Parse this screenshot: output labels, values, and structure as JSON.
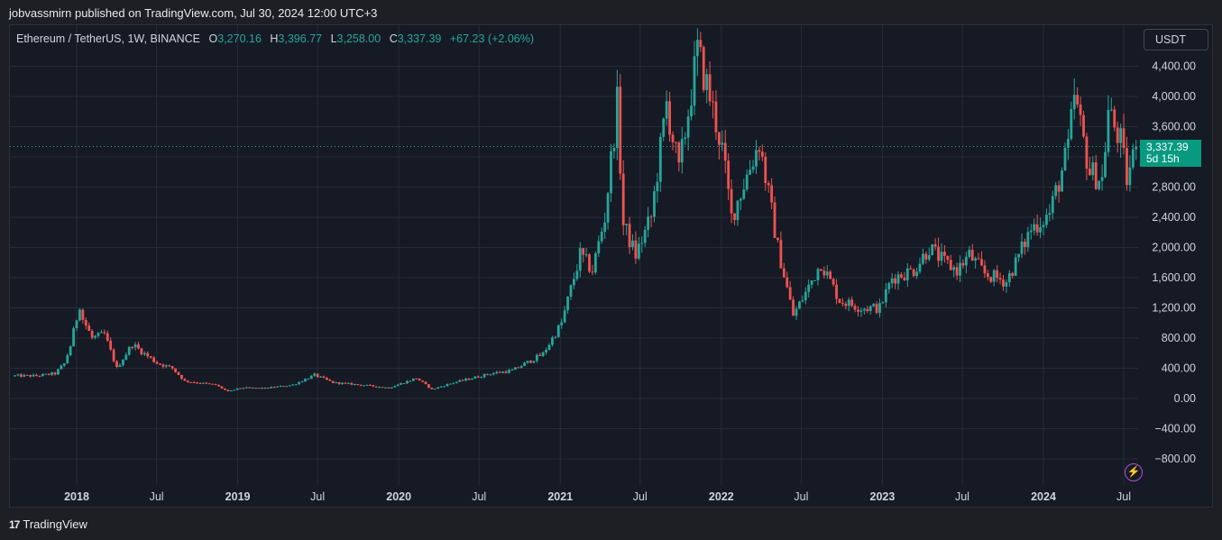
{
  "header": {
    "published": "jobvassmirn published on TradingView.com, Jul 30, 2024 12:00 UTC+3"
  },
  "legend": {
    "symbol": "Ethereum / TetherUS, 1W, BINANCE",
    "o_label": "O",
    "o_value": "3,270.16",
    "h_label": "H",
    "h_value": "3,396.77",
    "l_label": "L",
    "l_value": "3,258.00",
    "c_label": "C",
    "c_value": "3,337.39",
    "change": "+67.23 (+2.06%)"
  },
  "currency_button": "USDT",
  "price_tag": {
    "price": "3,337.39",
    "countdown": "5d 15h"
  },
  "footer": {
    "brand": "TradingView",
    "logo": "17"
  },
  "colors": {
    "up": "#26a69a",
    "down": "#ef5350",
    "background": "#161a25",
    "grid": "#262b38",
    "axis_text": "#d1d4dc"
  },
  "icons": {
    "footer_logo": "tradingview-logo-icon",
    "bolt": "lightning-icon"
  },
  "chart_data": {
    "type": "candlestick",
    "title": "Ethereum / TetherUS, 1W, BINANCE",
    "timeframe": "1W",
    "grid": true,
    "y_ticks": [
      "4,400.00",
      "4,000.00",
      "3,600.00",
      "3,200.00",
      "2,800.00",
      "2,400.00",
      "2,000.00",
      "1,600.00",
      "1,200.00",
      "800.00",
      "400.00",
      "0.00",
      "−400.00",
      "−800.00"
    ],
    "y_tick_values": [
      4400,
      4000,
      3600,
      3200,
      2800,
      2400,
      2000,
      1600,
      1200,
      800,
      400,
      0,
      -400,
      -800
    ],
    "x_ticks": [
      {
        "label": "2018",
        "bold": true,
        "date": "2018-01-01"
      },
      {
        "label": "Jul",
        "bold": false,
        "date": "2018-07-01"
      },
      {
        "label": "2019",
        "bold": true,
        "date": "2019-01-01"
      },
      {
        "label": "Jul",
        "bold": false,
        "date": "2019-07-01"
      },
      {
        "label": "2020",
        "bold": true,
        "date": "2020-01-01"
      },
      {
        "label": "Jul",
        "bold": false,
        "date": "2020-07-01"
      },
      {
        "label": "2021",
        "bold": true,
        "date": "2021-01-01"
      },
      {
        "label": "Jul",
        "bold": false,
        "date": "2021-07-01"
      },
      {
        "label": "2022",
        "bold": true,
        "date": "2022-01-01"
      },
      {
        "label": "Jul",
        "bold": false,
        "date": "2022-07-01"
      },
      {
        "label": "2023",
        "bold": true,
        "date": "2023-01-01"
      },
      {
        "label": "Jul",
        "bold": false,
        "date": "2023-07-01"
      },
      {
        "label": "2024",
        "bold": true,
        "date": "2024-01-01"
      },
      {
        "label": "Jul",
        "bold": false,
        "date": "2024-07-01"
      }
    ],
    "last_price": 3337.39,
    "close_anchors": [
      [
        "2017-08-14",
        300
      ],
      [
        "2017-10-02",
        300
      ],
      [
        "2017-11-13",
        330
      ],
      [
        "2017-12-04",
        460
      ],
      [
        "2017-12-18",
        700
      ],
      [
        "2018-01-08",
        1250
      ],
      [
        "2018-01-15",
        1050
      ],
      [
        "2018-02-05",
        800
      ],
      [
        "2018-03-05",
        850
      ],
      [
        "2018-04-02",
        400
      ],
      [
        "2018-05-07",
        720
      ],
      [
        "2018-06-04",
        590
      ],
      [
        "2018-07-02",
        470
      ],
      [
        "2018-08-06",
        400
      ],
      [
        "2018-09-03",
        230
      ],
      [
        "2018-10-01",
        210
      ],
      [
        "2018-11-12",
        180
      ],
      [
        "2018-12-10",
        90
      ],
      [
        "2019-01-07",
        140
      ],
      [
        "2019-03-04",
        135
      ],
      [
        "2019-05-06",
        180
      ],
      [
        "2019-06-24",
        310
      ],
      [
        "2019-08-05",
        210
      ],
      [
        "2019-10-07",
        180
      ],
      [
        "2019-12-09",
        140
      ],
      [
        "2020-02-10",
        270
      ],
      [
        "2020-03-16",
        120
      ],
      [
        "2020-05-04",
        210
      ],
      [
        "2020-07-27",
        330
      ],
      [
        "2020-09-14",
        370
      ],
      [
        "2020-11-23",
        590
      ],
      [
        "2021-01-04",
        1000
      ],
      [
        "2021-02-15",
        1900
      ],
      [
        "2021-03-15",
        1700
      ],
      [
        "2021-04-12",
        2400
      ],
      [
        "2021-05-10",
        3900
      ],
      [
        "2021-05-24",
        2300
      ],
      [
        "2021-06-21",
        1900
      ],
      [
        "2021-07-26",
        2400
      ],
      [
        "2021-08-30",
        3900
      ],
      [
        "2021-09-27",
        3000
      ],
      [
        "2021-11-08",
        4600
      ],
      [
        "2021-12-06",
        4000
      ],
      [
        "2022-01-03",
        3300
      ],
      [
        "2022-01-24",
        2400
      ],
      [
        "2022-03-28",
        3400
      ],
      [
        "2022-05-09",
        2000
      ],
      [
        "2022-06-13",
        1100
      ],
      [
        "2022-07-11",
        1400
      ],
      [
        "2022-08-15",
        1800
      ],
      [
        "2022-09-26",
        1300
      ],
      [
        "2022-11-14",
        1200
      ],
      [
        "2022-12-26",
        1200
      ],
      [
        "2023-01-23",
        1600
      ],
      [
        "2023-03-13",
        1700
      ],
      [
        "2023-04-17",
        2000
      ],
      [
        "2023-05-22",
        1800
      ],
      [
        "2023-06-19",
        1700
      ],
      [
        "2023-07-17",
        1900
      ],
      [
        "2023-08-21",
        1650
      ],
      [
        "2023-10-09",
        1550
      ],
      [
        "2023-10-30",
        1800
      ],
      [
        "2023-12-04",
        2250
      ],
      [
        "2024-01-15",
        2450
      ],
      [
        "2024-02-26",
        3300
      ],
      [
        "2024-03-11",
        4000
      ],
      [
        "2024-04-15",
        3000
      ],
      [
        "2024-05-13",
        2900
      ],
      [
        "2024-05-27",
        3800
      ],
      [
        "2024-06-24",
        3400
      ],
      [
        "2024-07-08",
        2900
      ],
      [
        "2024-07-29",
        3337.39
      ]
    ]
  }
}
